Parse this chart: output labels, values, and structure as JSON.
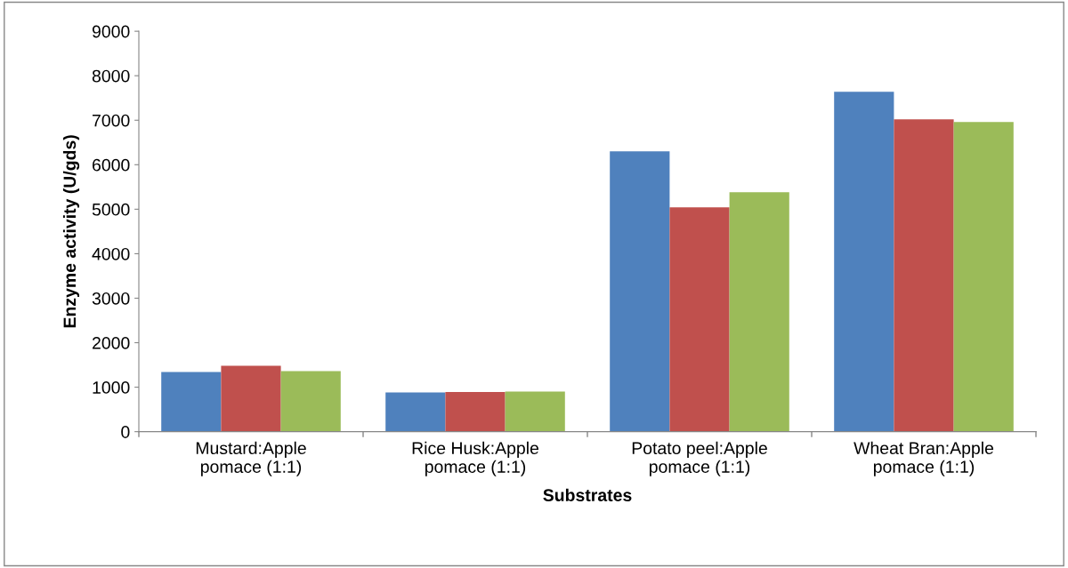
{
  "chart_data": {
    "type": "bar",
    "xlabel": "Substrates",
    "ylabel": "Enzyme activity (U/gds)",
    "categories": [
      "Mustard:Apple\npomace (1:1)",
      "Rice Husk:Apple\npomace (1:1)",
      "Potato peel:Apple\npomace (1:1)",
      "Wheat Bran:Apple\npomace (1:1)"
    ],
    "series": [
      {
        "color": "#4f81bd",
        "values": [
          1340,
          880,
          6300,
          7640
        ]
      },
      {
        "color": "#c0504d",
        "values": [
          1480,
          890,
          5040,
          7020
        ]
      },
      {
        "color": "#9bbb59",
        "values": [
          1360,
          900,
          5380,
          6960
        ]
      }
    ],
    "ylim": [
      0,
      9000
    ],
    "yticks": [
      0,
      1000,
      2000,
      3000,
      4000,
      5000,
      6000,
      7000,
      8000,
      9000
    ],
    "grid": false,
    "legend": false
  }
}
